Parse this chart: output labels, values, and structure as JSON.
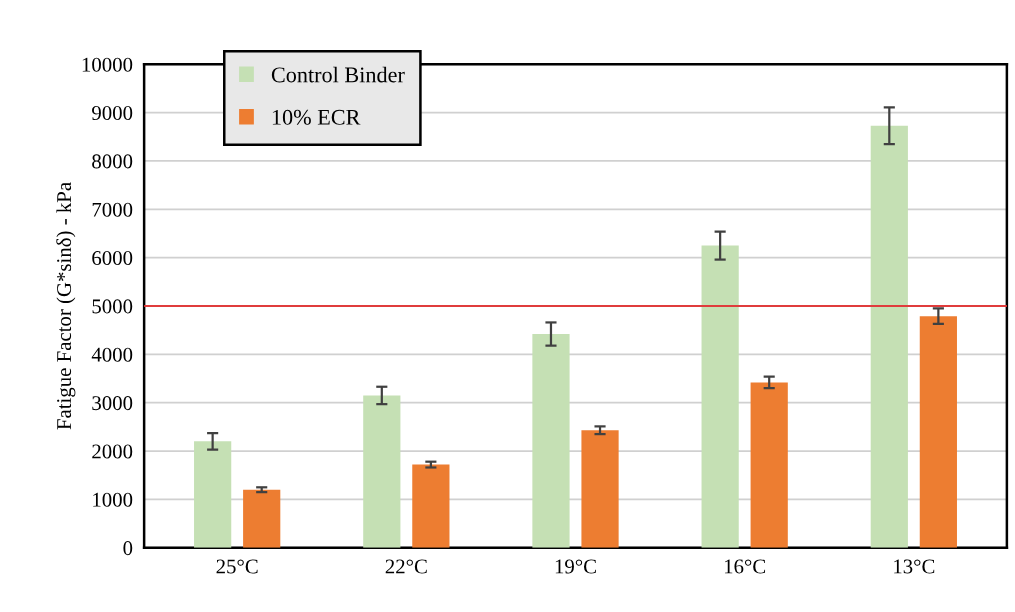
{
  "chart_data": {
    "type": "bar",
    "ylabel": "Fatigue Factor (G*sinδ) - kPa",
    "categories": [
      "25°C",
      "22°C",
      "19°C",
      "16°C",
      "13°C"
    ],
    "series": [
      {
        "name": "Control Binder",
        "color": "#c5e0b4",
        "values": [
          2200,
          3150,
          4420,
          6250,
          8730
        ],
        "errors": [
          170,
          180,
          240,
          290,
          380
        ]
      },
      {
        "name": "10% ECR",
        "color": "#ed7d31",
        "values": [
          1200,
          1720,
          2430,
          3420,
          4790
        ],
        "errors": [
          50,
          60,
          80,
          120,
          160
        ]
      }
    ],
    "ylim": [
      0,
      10000
    ],
    "yticks": [
      0,
      1000,
      2000,
      3000,
      4000,
      5000,
      6000,
      7000,
      8000,
      9000,
      10000
    ],
    "ref_lines": [
      {
        "axis": "y",
        "value": 5000,
        "color": "#e03c3c"
      }
    ],
    "grid": "y",
    "legend": "top left"
  }
}
